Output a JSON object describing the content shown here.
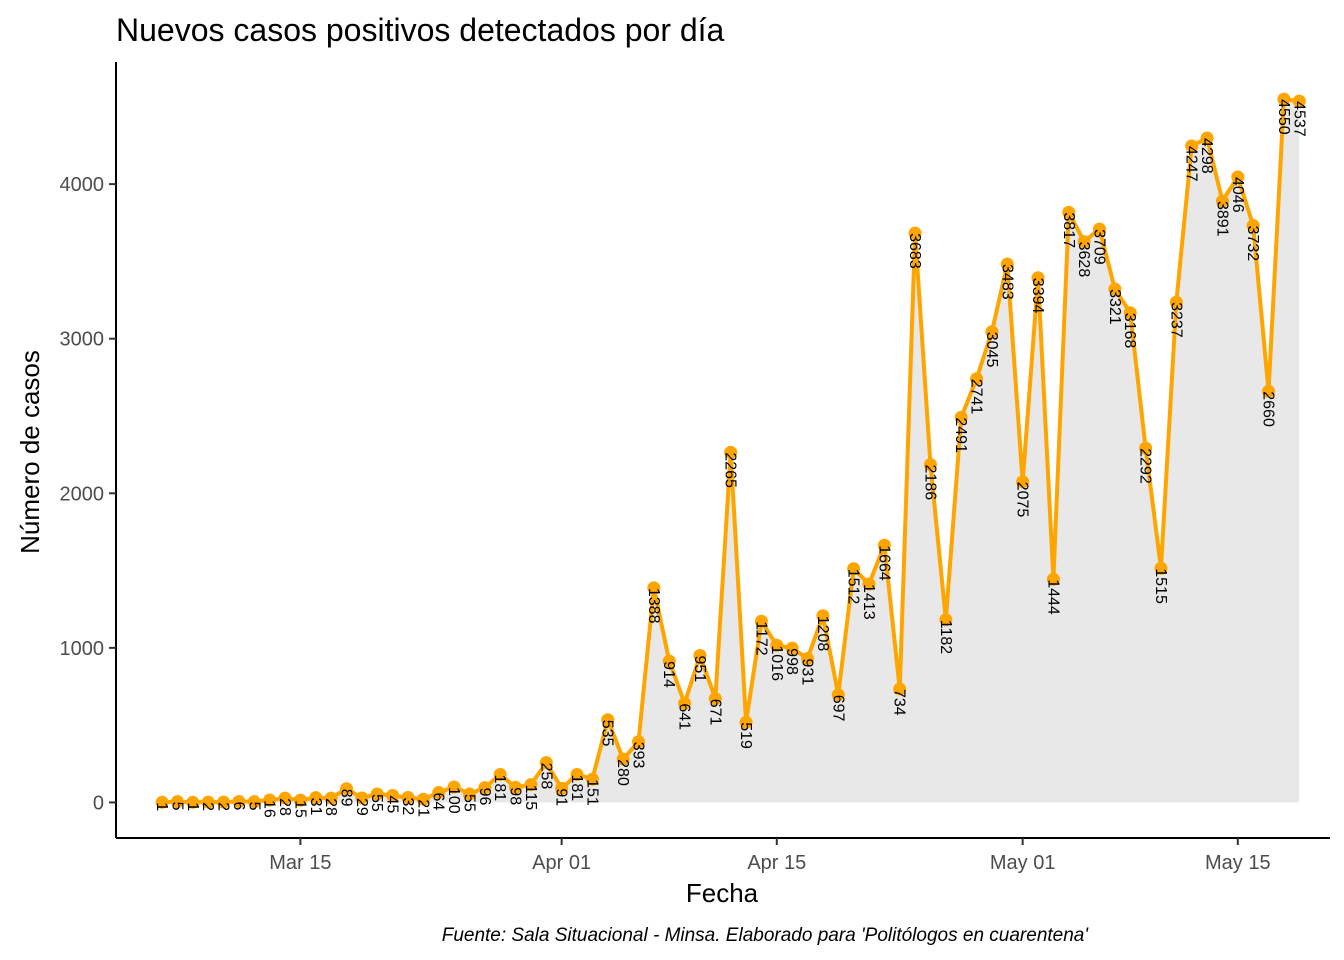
{
  "chart_data": {
    "type": "line",
    "title": "Nuevos casos positivos detectados por día",
    "xlabel": "Fecha",
    "ylabel": "Número de casos",
    "caption": "Fuente: Sala Situacional - Minsa. Elaborado para 'Politólogos en cuarentena'",
    "start_date": "2020-03-06",
    "x_range": [
      "2020-03-03",
      "2020-05-21"
    ],
    "ylim": [
      -230,
      4790
    ],
    "y_ticks": [
      0,
      1000,
      2000,
      3000,
      4000
    ],
    "y_tick_labels": [
      "0",
      "1000",
      "2000",
      "3000",
      "4000"
    ],
    "x_ticks": [
      "2020-03-15",
      "2020-04-01",
      "2020-04-15",
      "2020-05-01",
      "2020-05-15"
    ],
    "x_tick_labels": [
      "Mar 15",
      "Apr 01",
      "Apr 15",
      "May 01",
      "May 15"
    ],
    "grid": false,
    "area_fill": true,
    "colors": {
      "line": "#FFA500",
      "points": "#FFA500",
      "area": "#E8E8E8",
      "axis": "#000000"
    },
    "series": [
      {
        "values": [
          1,
          5,
          1,
          2,
          2,
          6,
          5,
          16,
          28,
          15,
          31,
          28,
          89,
          29,
          55,
          45,
          32,
          21,
          64,
          100,
          55,
          96,
          181,
          98,
          115,
          258,
          91,
          181,
          151,
          535,
          280,
          393,
          1388,
          914,
          641,
          951,
          671,
          2265,
          519,
          1172,
          1016,
          998,
          931,
          1208,
          697,
          1512,
          1413,
          1664,
          734,
          3683,
          2186,
          1182,
          2491,
          2741,
          3045,
          3483,
          2075,
          3394,
          1444,
          3817,
          3628,
          3709,
          3321,
          3168,
          2292,
          1515,
          3237,
          4247,
          4298,
          3891,
          4046,
          3732,
          2660,
          4550,
          4537
        ]
      }
    ]
  }
}
